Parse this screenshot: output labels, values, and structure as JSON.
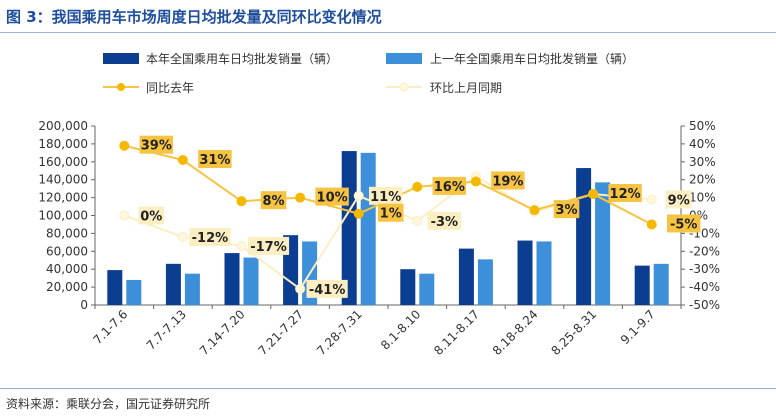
{
  "title": "图 3：我国乘用车市场周度日均批发量及同环比变化情况",
  "source": "资料来源：乘联分会，国元证券研究所",
  "colors": {
    "cur_bar": "#0b3d91",
    "prev_bar": "#3d8fd9",
    "yoy_line": "#f6c342",
    "yoy_marker": "#f5b800",
    "mom_line": "#fbeec2",
    "mom_marker": "#fff7de",
    "label_yoy_bg": "#f6c342",
    "label_mom_bg": "#fbeec2",
    "axis": "#666666",
    "text": "#333333"
  },
  "chart_data": {
    "type": "bar",
    "categories": [
      "7.1-7.6",
      "7.7-7.13",
      "7.14-7.20",
      "7.21-7.27",
      "7.28-7.31",
      "8.1-8.10",
      "8.11-8.17",
      "8.18-8.24",
      "8.25-8.31",
      "9.1-9.7"
    ],
    "series": [
      {
        "name": "本年全国乘用车日均批发销量（辆）",
        "type": "bar",
        "axis": "left",
        "values": [
          39000,
          46000,
          58000,
          78000,
          172000,
          40000,
          63000,
          72000,
          153000,
          44000
        ]
      },
      {
        "name": "上一年全国乘用车日均批发销量（辆）",
        "type": "bar",
        "axis": "left",
        "values": [
          28000,
          35000,
          53000,
          71000,
          170000,
          35000,
          51000,
          71000,
          137000,
          46000
        ]
      },
      {
        "name": "同比去年",
        "type": "line",
        "axis": "right",
        "values": [
          39,
          31,
          8,
          10,
          1,
          16,
          19,
          3,
          12,
          -5
        ],
        "labels": [
          "39%",
          "31%",
          "8%",
          "10%",
          "1%",
          "16%",
          "19%",
          "3%",
          "12%",
          "-5%"
        ]
      },
      {
        "name": "环比上月同期",
        "type": "line",
        "axis": "right",
        "values": [
          0,
          -12,
          -17,
          -41,
          11,
          -3,
          22,
          2,
          12,
          9
        ],
        "labels": [
          "0%",
          "-12%",
          "-17%",
          "-41%",
          "11%",
          "-3%",
          "",
          "",
          "",
          "9%"
        ]
      }
    ],
    "y_left": {
      "min": 0,
      "max": 200000,
      "step": 20000,
      "ticks": [
        "0",
        "20,000",
        "40,000",
        "60,000",
        "80,000",
        "100,000",
        "120,000",
        "140,000",
        "160,000",
        "180,000",
        "200,000"
      ]
    },
    "y_right": {
      "min": -50,
      "max": 50,
      "step": 10,
      "ticks": [
        "-50%",
        "-40%",
        "-30%",
        "-20%",
        "-10%",
        "0%",
        "10%",
        "20%",
        "30%",
        "40%",
        "50%"
      ]
    },
    "legend_position": "top",
    "grid": false
  }
}
